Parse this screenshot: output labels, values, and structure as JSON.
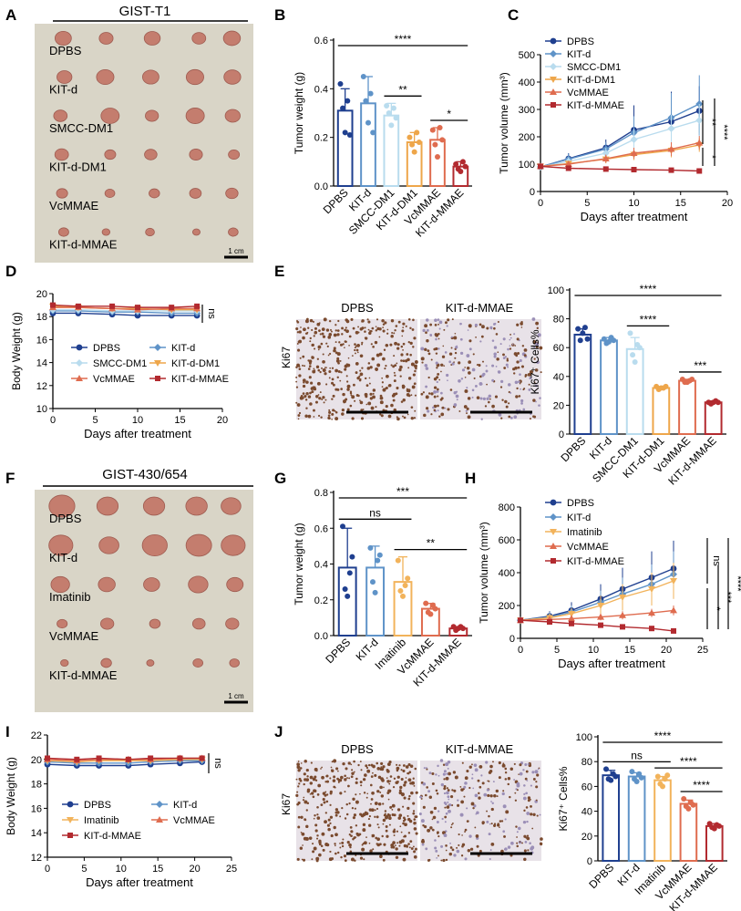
{
  "panel_letters": [
    "A",
    "B",
    "C",
    "D",
    "E",
    "F",
    "G",
    "H",
    "I",
    "J"
  ],
  "colors": {
    "DPBS": "#1f3f8f",
    "KIT-d": "#5f93c8",
    "SMCC-DM1": "#b9dcee",
    "KIT-d-DM1": "#eea64a",
    "VcMMAE": "#df6c4f",
    "KIT-d-MMAE": "#b22a2f",
    "Imatinib": "#f2b35b",
    "photo_bg": "#d7d3c4",
    "tumor": "#c47d6e",
    "ihc_bg": "#e8e2e8",
    "ihc_dot": "#7a4a2e"
  },
  "A": {
    "title": "GIST-T1",
    "rows": [
      "DPBS",
      "KIT-d",
      "SMCC-DM1",
      "KIT-d-DM1",
      "VcMMAE",
      "KIT-d-MMAE"
    ],
    "scale": "1 cm"
  },
  "F": {
    "title": "GIST-430/654",
    "rows": [
      "DPBS",
      "KIT-d",
      "Imatinib",
      "VcMMAE",
      "KIT-d-MMAE"
    ],
    "scale": "1 cm"
  },
  "E": {
    "ihc_left": "DPBS",
    "ihc_right": "KIT-d-MMAE",
    "ylabel_stain": "Ki67"
  },
  "J": {
    "ihc_left": "DPBS",
    "ihc_right": "KIT-d-MMAE",
    "ylabel_stain": "Ki67"
  },
  "chart_data": [
    {
      "panel": "B",
      "type": "bar",
      "categories": [
        "DPBS",
        "KIT-d",
        "SMCC-DM1",
        "KIT-d-DM1",
        "VcMMAE",
        "KIT-d-MMAE"
      ],
      "values": [
        0.31,
        0.34,
        0.29,
        0.18,
        0.19,
        0.08
      ],
      "errors": [
        0.09,
        0.11,
        0.05,
        0.04,
        0.05,
        0.02
      ],
      "points": [
        [
          0.42,
          0.32,
          0.22,
          0.35,
          0.21
        ],
        [
          0.45,
          0.35,
          0.26,
          0.38,
          0.22
        ],
        [
          0.33,
          0.3,
          0.25,
          0.32,
          0.28
        ],
        [
          0.2,
          0.17,
          0.14,
          0.22,
          0.18
        ],
        [
          0.23,
          0.17,
          0.12,
          0.24,
          0.19
        ],
        [
          0.09,
          0.07,
          0.06,
          0.1,
          0.08
        ]
      ],
      "ylabel": "Tumor weight (g)",
      "ylim": [
        0,
        0.6
      ],
      "yticks": [
        0.0,
        0.2,
        0.4,
        0.6
      ],
      "sig": [
        {
          "from": 0,
          "to": 5,
          "label": "****"
        },
        {
          "from": 2,
          "to": 3,
          "label": "**"
        },
        {
          "from": 4,
          "to": 5,
          "label": "*"
        }
      ]
    },
    {
      "panel": "C",
      "type": "line",
      "x": [
        0,
        3,
        7,
        10,
        14,
        17
      ],
      "xlabel": "Days after treatment",
      "ylabel": "Tumor volume (mm³)",
      "xlim": [
        0,
        20
      ],
      "ylim": [
        0,
        500
      ],
      "xticks": [
        0,
        5,
        10,
        15,
        20
      ],
      "yticks": [
        0,
        100,
        200,
        300,
        400,
        500
      ],
      "series": [
        {
          "name": "DPBS",
          "values": [
            90,
            120,
            160,
            225,
            255,
            295
          ],
          "err": [
            10,
            20,
            30,
            90,
            110,
            90
          ]
        },
        {
          "name": "KIT-d",
          "values": [
            90,
            118,
            155,
            215,
            270,
            320
          ],
          "err": [
            10,
            20,
            25,
            60,
            90,
            105
          ]
        },
        {
          "name": "SMCC-DM1",
          "values": [
            90,
            110,
            140,
            190,
            230,
            260
          ],
          "err": [
            10,
            15,
            20,
            40,
            50,
            60
          ]
        },
        {
          "name": "KIT-d-DM1",
          "values": [
            92,
            102,
            118,
            135,
            150,
            170
          ],
          "err": [
            8,
            10,
            15,
            20,
            25,
            25
          ]
        },
        {
          "name": "VcMMAE",
          "values": [
            92,
            100,
            120,
            140,
            155,
            178
          ],
          "err": [
            8,
            10,
            15,
            20,
            25,
            25
          ]
        },
        {
          "name": "KIT-d-MMAE",
          "values": [
            92,
            85,
            82,
            80,
            78,
            75
          ],
          "err": [
            8,
            8,
            8,
            8,
            8,
            8
          ]
        }
      ],
      "sig": [
        "**",
        "****",
        "*"
      ]
    },
    {
      "panel": "D",
      "type": "line",
      "x": [
        0,
        3,
        7,
        10,
        14,
        17
      ],
      "xlabel": "Days after treatment",
      "ylabel": "Body Weight (g)",
      "xlim": [
        0,
        20
      ],
      "ylim": [
        10,
        20
      ],
      "xticks": [
        0,
        5,
        10,
        15,
        20
      ],
      "yticks": [
        10,
        12,
        14,
        16,
        18,
        20
      ],
      "series": [
        {
          "name": "DPBS",
          "values": [
            18.3,
            18.3,
            18.2,
            18.1,
            18.1,
            18.1
          ]
        },
        {
          "name": "KIT-d",
          "values": [
            18.5,
            18.5,
            18.4,
            18.4,
            18.3,
            18.3
          ]
        },
        {
          "name": "SMCC-DM1",
          "values": [
            18.6,
            18.6,
            18.5,
            18.5,
            18.5,
            18.5
          ]
        },
        {
          "name": "KIT-d-DM1",
          "values": [
            18.9,
            18.8,
            18.7,
            18.7,
            18.6,
            18.6
          ]
        },
        {
          "name": "VcMMAE",
          "values": [
            18.8,
            18.8,
            18.7,
            18.6,
            18.7,
            18.7
          ]
        },
        {
          "name": "KIT-d-MMAE",
          "values": [
            19.0,
            18.9,
            18.9,
            18.8,
            18.8,
            18.9
          ]
        }
      ],
      "sig": [
        "ns"
      ]
    },
    {
      "panel": "E",
      "type": "bar",
      "categories": [
        "DPBS",
        "KIT-d",
        "SMCC-DM1",
        "KIT-d-DM1",
        "VcMMAE",
        "KIT-d-MMAE"
      ],
      "values": [
        69,
        65,
        59,
        32,
        37,
        22
      ],
      "errors": [
        4,
        2,
        8,
        1,
        1,
        1
      ],
      "points": [
        [
          73,
          65,
          70,
          74,
          66
        ],
        [
          66,
          63,
          64,
          67,
          65
        ],
        [
          70,
          55,
          50,
          62,
          60
        ],
        [
          33,
          31,
          32,
          32,
          33
        ],
        [
          38,
          36,
          36,
          37,
          38
        ],
        [
          22,
          21,
          22,
          23,
          22
        ]
      ],
      "ylabel": "Ki67⁺ Cells%",
      "ylim": [
        0,
        100
      ],
      "yticks": [
        0,
        20,
        40,
        60,
        80,
        100
      ],
      "sig": [
        {
          "from": 0,
          "to": 5,
          "label": "****"
        },
        {
          "from": 2,
          "to": 3,
          "label": "****"
        },
        {
          "from": 4,
          "to": 5,
          "label": "***"
        }
      ]
    },
    {
      "panel": "G",
      "type": "bar",
      "categories": [
        "DPBS",
        "KIT-d",
        "Imatinib",
        "VcMMAE",
        "KIT-d-MMAE"
      ],
      "values": [
        0.38,
        0.38,
        0.3,
        0.15,
        0.04
      ],
      "errors": [
        0.22,
        0.12,
        0.14,
        0.03,
        0.01
      ],
      "points": [
        [
          0.61,
          0.26,
          0.22,
          0.35,
          0.44
        ],
        [
          0.49,
          0.3,
          0.24,
          0.42,
          0.45
        ],
        [
          0.42,
          0.25,
          0.22,
          0.28,
          0.32
        ],
        [
          0.18,
          0.13,
          0.12,
          0.17,
          0.15
        ],
        [
          0.05,
          0.03,
          0.04,
          0.05,
          0.04
        ]
      ],
      "ylabel": "Tumor weight (g)",
      "ylim": [
        0,
        0.8
      ],
      "yticks": [
        0.0,
        0.2,
        0.4,
        0.6,
        0.8
      ],
      "sig": [
        {
          "from": 0,
          "to": 4,
          "label": "***"
        },
        {
          "from": 0,
          "to": 2,
          "label": "ns"
        },
        {
          "from": 2,
          "to": 4,
          "label": "**"
        }
      ]
    },
    {
      "panel": "H",
      "type": "line",
      "x": [
        0,
        4,
        7,
        11,
        14,
        18,
        21
      ],
      "xlabel": "Days after treatment",
      "ylabel": "Tumor volume (mm³)",
      "xlim": [
        0,
        25
      ],
      "ylim": [
        0,
        800
      ],
      "xticks": [
        0,
        5,
        10,
        15,
        20,
        25
      ],
      "yticks": [
        0,
        200,
        400,
        600,
        800
      ],
      "series": [
        {
          "name": "DPBS",
          "values": [
            110,
            135,
            170,
            240,
            300,
            370,
            425
          ],
          "err": [
            20,
            30,
            50,
            90,
            130,
            160,
            170
          ]
        },
        {
          "name": "KIT-d",
          "values": [
            110,
            130,
            160,
            220,
            270,
            330,
            390
          ],
          "err": [
            20,
            30,
            40,
            70,
            100,
            120,
            140
          ]
        },
        {
          "name": "Imatinib",
          "values": [
            110,
            125,
            150,
            200,
            250,
            300,
            350
          ],
          "err": [
            20,
            25,
            35,
            60,
            80,
            100,
            110
          ]
        },
        {
          "name": "VcMMAE",
          "values": [
            110,
            115,
            120,
            130,
            140,
            155,
            170
          ],
          "err": [
            15,
            15,
            20,
            20,
            25,
            25,
            30
          ]
        },
        {
          "name": "KIT-d-MMAE",
          "values": [
            110,
            100,
            90,
            80,
            70,
            60,
            45
          ],
          "err": [
            10,
            10,
            10,
            10,
            10,
            10,
            10
          ]
        }
      ],
      "sig": [
        "ns",
        "*",
        "***",
        "****"
      ]
    },
    {
      "panel": "I",
      "type": "line",
      "x": [
        0,
        4,
        7,
        11,
        14,
        18,
        21
      ],
      "xlabel": "Days after treatment",
      "ylabel": "Body Weight (g)",
      "xlim": [
        0,
        25
      ],
      "ylim": [
        12,
        22
      ],
      "xticks": [
        0,
        5,
        10,
        15,
        20,
        25
      ],
      "yticks": [
        12,
        14,
        16,
        18,
        20,
        22
      ],
      "series": [
        {
          "name": "DPBS",
          "values": [
            19.6,
            19.5,
            19.5,
            19.5,
            19.6,
            19.7,
            19.8
          ]
        },
        {
          "name": "KIT-d",
          "values": [
            19.8,
            19.7,
            19.7,
            19.7,
            19.8,
            19.9,
            19.9
          ]
        },
        {
          "name": "Imatinib",
          "values": [
            19.9,
            19.8,
            19.9,
            19.9,
            19.9,
            20.0,
            20.0
          ]
        },
        {
          "name": "VcMMAE",
          "values": [
            20.0,
            19.9,
            20.0,
            20.0,
            20.0,
            20.1,
            20.1
          ]
        },
        {
          "name": "KIT-d-MMAE",
          "values": [
            20.1,
            20.0,
            20.1,
            20.0,
            20.1,
            20.1,
            20.1
          ]
        }
      ],
      "sig": [
        "ns"
      ]
    },
    {
      "panel": "J",
      "type": "bar",
      "categories": [
        "DPBS",
        "KIT-d",
        "Imatinib",
        "VcMMAE",
        "KIT-d-MMAE"
      ],
      "values": [
        69,
        68,
        65,
        46,
        28
      ],
      "errors": [
        4,
        3,
        3,
        3,
        2
      ],
      "points": [
        [
          74,
          66,
          65,
          70,
          68
        ],
        [
          72,
          66,
          64,
          70,
          67
        ],
        [
          68,
          62,
          60,
          66,
          69
        ],
        [
          50,
          44,
          42,
          47,
          45
        ],
        [
          30,
          27,
          26,
          29,
          28
        ]
      ],
      "ylabel": "Ki67⁺ Cells%",
      "ylim": [
        0,
        100
      ],
      "yticks": [
        0,
        20,
        40,
        60,
        80,
        100
      ],
      "sig": [
        {
          "from": 0,
          "to": 4,
          "label": "****"
        },
        {
          "from": 0,
          "to": 2,
          "label": "ns"
        },
        {
          "from": 2,
          "to": 4,
          "label": "****"
        },
        {
          "from": 3,
          "to": 4,
          "label": "****"
        }
      ]
    }
  ]
}
